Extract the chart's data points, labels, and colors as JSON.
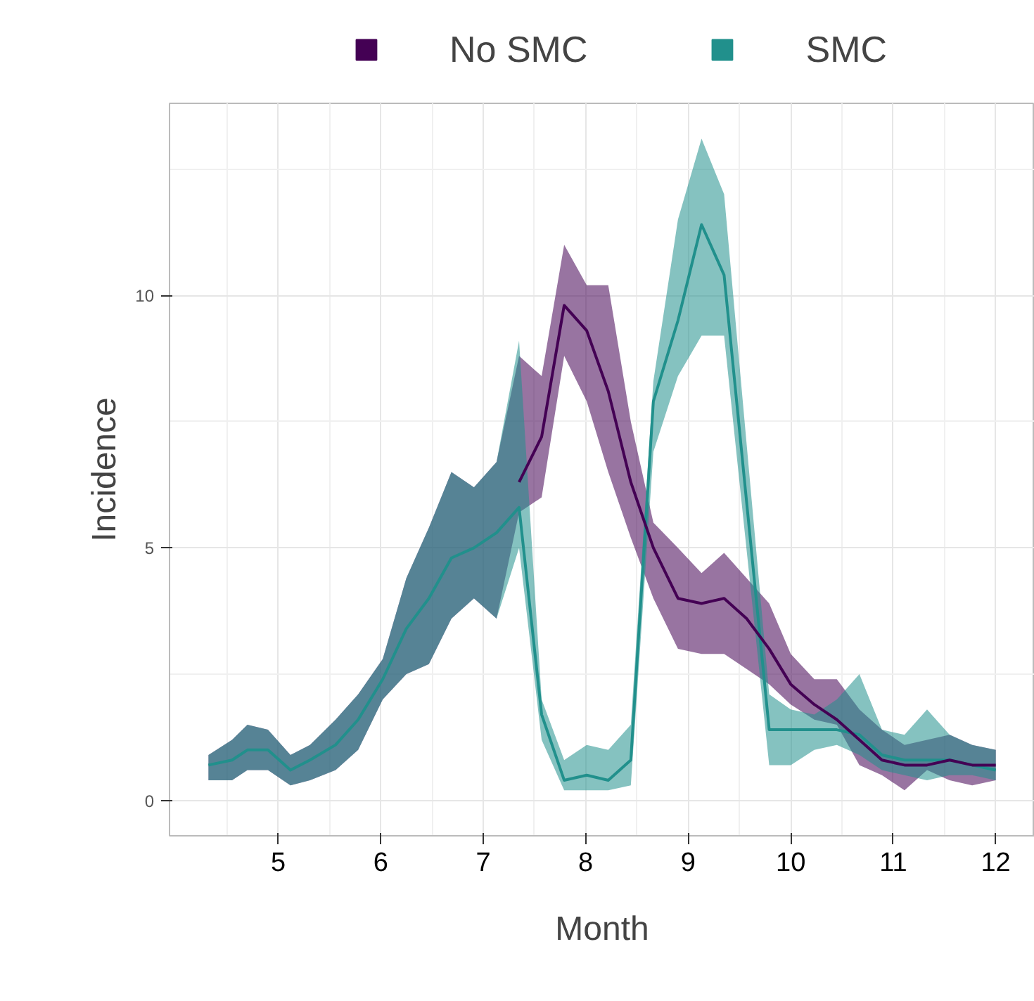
{
  "chart_data": {
    "type": "line",
    "xlabel": "Month",
    "ylabel": "Incidence",
    "xlim": [
      3.94,
      12.38
    ],
    "ylim": [
      -0.7,
      13.8
    ],
    "xticks": [
      5,
      6,
      7,
      8,
      9,
      10,
      11,
      12
    ],
    "yticks": [
      0,
      5,
      10
    ],
    "grid": true,
    "legend": "top",
    "marker": "none",
    "line_style": "solid",
    "series": [
      {
        "name": "No SMC",
        "color": "#440154",
        "x": [
          4.32,
          4.55,
          4.7,
          4.9,
          5.12,
          5.31,
          5.56,
          5.78,
          6.02,
          6.25,
          6.47,
          6.69,
          6.91,
          7.13,
          7.35,
          7.57,
          7.79,
          8.01,
          8.22,
          8.44,
          8.66,
          8.9,
          9.13,
          9.35,
          9.57,
          9.79,
          10.0,
          10.23,
          10.45,
          10.67,
          10.89,
          11.11,
          11.33,
          11.55,
          11.77,
          12.0
        ],
        "values": [
          null,
          null,
          null,
          null,
          null,
          null,
          null,
          null,
          null,
          null,
          null,
          null,
          null,
          null,
          6.3,
          7.2,
          9.8,
          9.3,
          8.1,
          6.3,
          5.0,
          4.0,
          3.9,
          4.0,
          3.6,
          3.0,
          2.3,
          1.9,
          1.6,
          1.2,
          0.8,
          0.7,
          0.7,
          0.8,
          0.7,
          0.7
        ],
        "lower": [
          0.4,
          0.4,
          0.6,
          0.6,
          0.3,
          0.4,
          0.6,
          1.0,
          2.0,
          2.5,
          2.7,
          3.6,
          4.0,
          3.6,
          5.7,
          6.0,
          8.8,
          7.9,
          6.5,
          5.2,
          4.0,
          3.0,
          2.9,
          2.9,
          2.6,
          2.3,
          1.9,
          1.6,
          1.5,
          0.7,
          0.5,
          0.2,
          0.6,
          0.4,
          0.3,
          0.4
        ],
        "upper": [
          0.9,
          1.2,
          1.5,
          1.4,
          0.9,
          1.1,
          1.6,
          2.1,
          2.8,
          4.4,
          5.4,
          6.5,
          6.2,
          6.7,
          8.8,
          8.4,
          11.0,
          10.2,
          10.2,
          7.5,
          5.5,
          5.0,
          4.5,
          4.9,
          4.4,
          3.9,
          2.9,
          2.4,
          2.4,
          1.8,
          1.4,
          1.1,
          1.2,
          1.3,
          1.1,
          1.0
        ]
      },
      {
        "name": "SMC",
        "color": "#21908c",
        "x": [
          4.32,
          4.55,
          4.7,
          4.9,
          5.12,
          5.31,
          5.56,
          5.78,
          6.02,
          6.25,
          6.47,
          6.69,
          6.91,
          7.13,
          7.35,
          7.57,
          7.79,
          8.01,
          8.22,
          8.44,
          8.66,
          8.9,
          9.13,
          9.35,
          9.79,
          10.0,
          10.23,
          10.45,
          10.67,
          10.89,
          11.11,
          11.33,
          11.55,
          11.77,
          12.0
        ],
        "values": [
          0.7,
          0.8,
          1.0,
          1.0,
          0.6,
          0.8,
          1.1,
          1.6,
          2.4,
          3.4,
          4.0,
          4.8,
          5.0,
          5.3,
          5.8,
          1.7,
          0.4,
          0.5,
          0.4,
          0.8,
          7.9,
          9.5,
          11.4,
          10.4,
          1.4,
          1.4,
          1.4,
          1.4,
          1.3,
          0.9,
          0.8,
          0.8,
          0.8,
          0.7,
          0.6
        ],
        "lower": [
          0.4,
          0.4,
          0.6,
          0.6,
          0.3,
          0.4,
          0.6,
          1.0,
          2.0,
          2.5,
          2.7,
          3.6,
          4.0,
          3.6,
          5.0,
          1.2,
          0.2,
          0.2,
          0.2,
          0.3,
          6.9,
          8.4,
          9.2,
          9.2,
          0.7,
          0.7,
          1.0,
          1.1,
          0.9,
          0.6,
          0.5,
          0.4,
          0.5,
          0.5,
          0.4
        ],
        "upper": [
          0.9,
          1.2,
          1.5,
          1.4,
          0.9,
          1.1,
          1.6,
          2.1,
          2.8,
          4.4,
          5.4,
          6.5,
          6.2,
          6.7,
          9.1,
          2.0,
          0.8,
          1.1,
          1.0,
          1.5,
          8.3,
          11.5,
          13.1,
          12.0,
          2.1,
          1.8,
          1.7,
          2.0,
          2.5,
          1.4,
          1.3,
          1.8,
          1.3,
          1.1,
          1.0
        ]
      }
    ]
  }
}
